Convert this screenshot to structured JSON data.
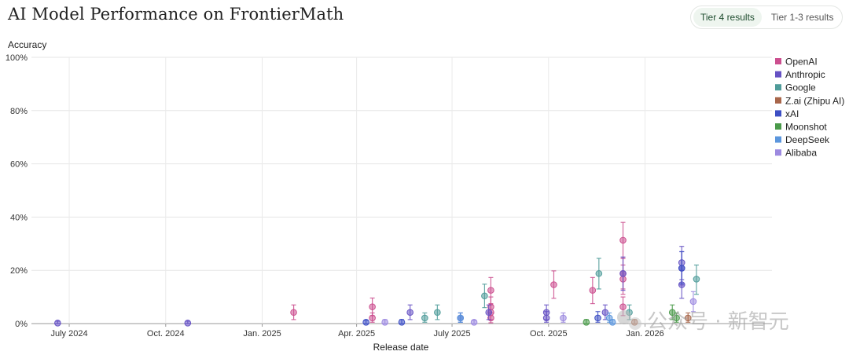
{
  "page": {
    "title": "AI Model Performance on FrontierMath",
    "tabs": [
      {
        "label": "Tier 4 results",
        "active": true
      },
      {
        "label": "Tier 1-3 results",
        "active": false
      }
    ],
    "watermark": "公众号 · 新智元"
  },
  "chart_data": {
    "type": "scatter",
    "title": "AI Model Performance on FrontierMath",
    "xlabel": "Release date",
    "ylabel": "Accuracy",
    "ylim": [
      0,
      100
    ],
    "xlim": [
      "2024-05-26",
      "2026-05-02"
    ],
    "x_ticks": [
      {
        "date": "2024-07-01",
        "label": "July 2024"
      },
      {
        "date": "2024-10-01",
        "label": "Oct. 2024"
      },
      {
        "date": "2025-01-01",
        "label": "Jan. 2025"
      },
      {
        "date": "2025-04-01",
        "label": "Apr. 2025"
      },
      {
        "date": "2025-07-01",
        "label": "July 2025"
      },
      {
        "date": "2025-10-01",
        "label": "Oct. 2025"
      },
      {
        "date": "2026-01-01",
        "label": "Jan. 2026"
      }
    ],
    "y_ticks": [
      0,
      20,
      40,
      60,
      80,
      100
    ],
    "y_tick_labels": [
      "0%",
      "20%",
      "40%",
      "60%",
      "80%",
      "100%"
    ],
    "grid": true,
    "legend_position": "top-right",
    "series": [
      {
        "name": "OpenAI",
        "color": "#cc4f8f",
        "points": [
          {
            "x": "2025-01-31",
            "y": 4.2,
            "lo": 1.5,
            "hi": 7.0
          },
          {
            "x": "2025-04-16",
            "y": 6.3,
            "lo": 3.0,
            "hi": 9.6
          },
          {
            "x": "2025-04-16",
            "y": 2.1,
            "lo": 0.5,
            "hi": 4.0
          },
          {
            "x": "2025-08-07",
            "y": 12.5,
            "lo": 7.5,
            "hi": 17.3
          },
          {
            "x": "2025-08-07",
            "y": 6.3,
            "lo": 3.0,
            "hi": 10.0
          },
          {
            "x": "2025-08-07",
            "y": 4.2,
            "lo": 1.5,
            "hi": 7.0
          },
          {
            "x": "2025-08-07",
            "y": 2.1,
            "lo": 0.3,
            "hi": 4.0
          },
          {
            "x": "2025-10-06",
            "y": 14.6,
            "lo": 9.5,
            "hi": 19.8
          },
          {
            "x": "2025-11-12",
            "y": 12.5,
            "lo": 7.5,
            "hi": 17.3
          },
          {
            "x": "2025-12-11",
            "y": 31.3,
            "lo": 24.5,
            "hi": 38.0
          },
          {
            "x": "2025-12-11",
            "y": 18.8,
            "lo": 13.0,
            "hi": 24.5
          },
          {
            "x": "2025-12-11",
            "y": 16.7,
            "lo": 11.0,
            "hi": 22.0
          },
          {
            "x": "2025-12-11",
            "y": 6.3,
            "lo": 3.0,
            "hi": 10.0
          }
        ]
      },
      {
        "name": "Anthropic",
        "color": "#6652c4",
        "points": [
          {
            "x": "2024-06-20",
            "y": 0.2,
            "lo": 0,
            "hi": 0.9
          },
          {
            "x": "2024-10-22",
            "y": 0.2,
            "lo": 0,
            "hi": 0.9
          },
          {
            "x": "2025-05-22",
            "y": 4.2,
            "lo": 1.5,
            "hi": 7.0
          },
          {
            "x": "2025-08-05",
            "y": 4.2,
            "lo": 1.5,
            "hi": 7.0
          },
          {
            "x": "2025-09-29",
            "y": 2.1,
            "lo": 0.5,
            "hi": 4.5
          },
          {
            "x": "2025-09-29",
            "y": 4.2,
            "lo": 1.5,
            "hi": 7.0
          },
          {
            "x": "2025-11-24",
            "y": 4.2,
            "lo": 1.5,
            "hi": 7.0
          },
          {
            "x": "2025-12-11",
            "y": 18.8,
            "lo": 12.5,
            "hi": 25.0
          },
          {
            "x": "2026-02-05",
            "y": 22.9,
            "lo": 16.5,
            "hi": 29.0
          },
          {
            "x": "2026-02-05",
            "y": 20.8,
            "lo": 14.5,
            "hi": 27.0
          },
          {
            "x": "2026-02-05",
            "y": 14.6,
            "lo": 9.5,
            "hi": 20.0
          }
        ]
      },
      {
        "name": "Google",
        "color": "#4f9c9a",
        "points": [
          {
            "x": "2025-06-05",
            "y": 2.1,
            "lo": 0.5,
            "hi": 4.0
          },
          {
            "x": "2025-06-17",
            "y": 4.2,
            "lo": 1.5,
            "hi": 7.0
          },
          {
            "x": "2025-08-01",
            "y": 10.4,
            "lo": 6.0,
            "hi": 14.8
          },
          {
            "x": "2025-11-18",
            "y": 18.8,
            "lo": 13.0,
            "hi": 24.5
          },
          {
            "x": "2025-12-17",
            "y": 4.2,
            "lo": 1.5,
            "hi": 7.0
          },
          {
            "x": "2026-02-19",
            "y": 16.7,
            "lo": 11.0,
            "hi": 22.0
          }
        ]
      },
      {
        "name": "Z.ai (Zhipu AI)",
        "color": "#a8664a",
        "points": [
          {
            "x": "2025-12-22",
            "y": 0.5,
            "lo": 0,
            "hi": 1.5
          },
          {
            "x": "2026-02-11",
            "y": 2.1,
            "lo": 0.5,
            "hi": 4.0
          }
        ]
      },
      {
        "name": "xAI",
        "color": "#3d4fc4",
        "points": [
          {
            "x": "2025-04-10",
            "y": 0.5,
            "lo": 0,
            "hi": 1.2
          },
          {
            "x": "2025-05-14",
            "y": 0.5,
            "lo": 0,
            "hi": 1.5
          },
          {
            "x": "2025-07-09",
            "y": 2.1,
            "lo": 0.5,
            "hi": 4.0
          },
          {
            "x": "2025-11-17",
            "y": 2.1,
            "lo": 0.5,
            "hi": 4.5
          },
          {
            "x": "2026-02-05",
            "y": 20.8,
            "lo": 15.0,
            "hi": 27.0
          }
        ]
      },
      {
        "name": "Moonshot",
        "color": "#4a9a4a",
        "points": [
          {
            "x": "2025-11-06",
            "y": 0.5,
            "lo": 0,
            "hi": 1.5
          },
          {
            "x": "2026-01-27",
            "y": 4.2,
            "lo": 1.5,
            "hi": 7.0
          },
          {
            "x": "2026-01-31",
            "y": 2.1,
            "lo": 0.5,
            "hi": 4.0
          }
        ]
      },
      {
        "name": "DeepSeek",
        "color": "#5b96dd",
        "points": [
          {
            "x": "2025-07-09",
            "y": 2.1,
            "lo": 0.5,
            "hi": 4.0
          },
          {
            "x": "2025-11-28",
            "y": 2.1,
            "lo": 0.5,
            "hi": 4.0
          },
          {
            "x": "2025-12-01",
            "y": 0.5,
            "lo": 0,
            "hi": 1.5
          }
        ]
      },
      {
        "name": "Alibaba",
        "color": "#9d8ae0",
        "points": [
          {
            "x": "2025-04-28",
            "y": 0.5,
            "lo": 0,
            "hi": 1.5
          },
          {
            "x": "2025-07-22",
            "y": 0.5,
            "lo": 0,
            "hi": 1.2
          },
          {
            "x": "2025-10-15",
            "y": 2.1,
            "lo": 0.5,
            "hi": 4.0
          },
          {
            "x": "2026-02-16",
            "y": 8.3,
            "lo": 4.5,
            "hi": 12.0
          }
        ]
      }
    ]
  }
}
